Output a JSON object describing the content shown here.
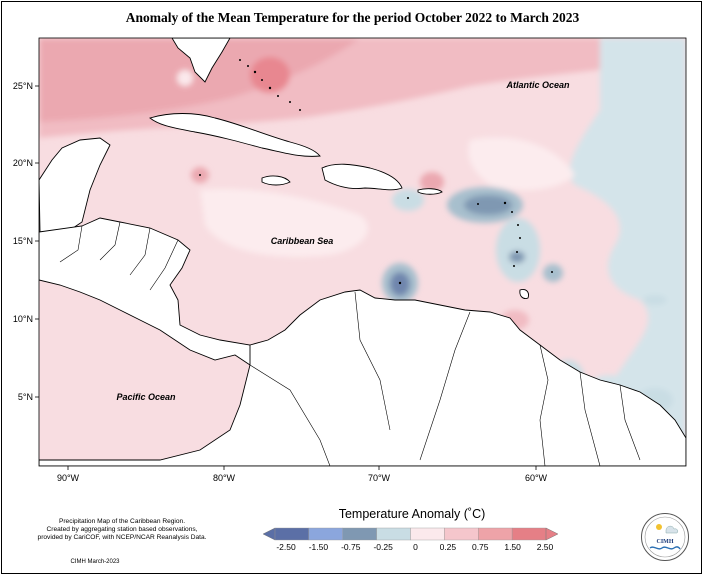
{
  "title": "Anomaly of the Mean Temperature for the period October 2022 to March 2023",
  "ocean_labels": {
    "atlantic": "Atlantic Ocean",
    "caribbean": "Caribbean Sea",
    "pacific": "Pacific Ocean"
  },
  "lat_labels": [
    "25°N",
    "20°N",
    "15°N",
    "10°N",
    "5°N"
  ],
  "lon_labels": [
    "90°W",
    "80°W",
    "70°W",
    "60°W"
  ],
  "legend": {
    "title": "Temperature Anomaly (˚C)",
    "ticks": [
      "-2.50",
      "-1.50",
      "-0.75",
      "-0.25",
      "0",
      "0.25",
      "0.75",
      "1.50",
      "2.50"
    ],
    "colors": [
      "#5b6fa6",
      "#8ba6dd",
      "#7f98b2",
      "#c9dde4",
      "#fbe9ec",
      "#f5c6cc",
      "#eea3a8",
      "#e57f86"
    ]
  },
  "credit": {
    "line1": "Precipitation Map of the Caribbean Region.",
    "line2": "Created by aggregating station based observations,",
    "line3": "provided by CariCOF, with NCEP/NCAR Reanalysis Data.",
    "date": "CIMH March-2023"
  },
  "logo": {
    "label": "CIMH"
  }
}
